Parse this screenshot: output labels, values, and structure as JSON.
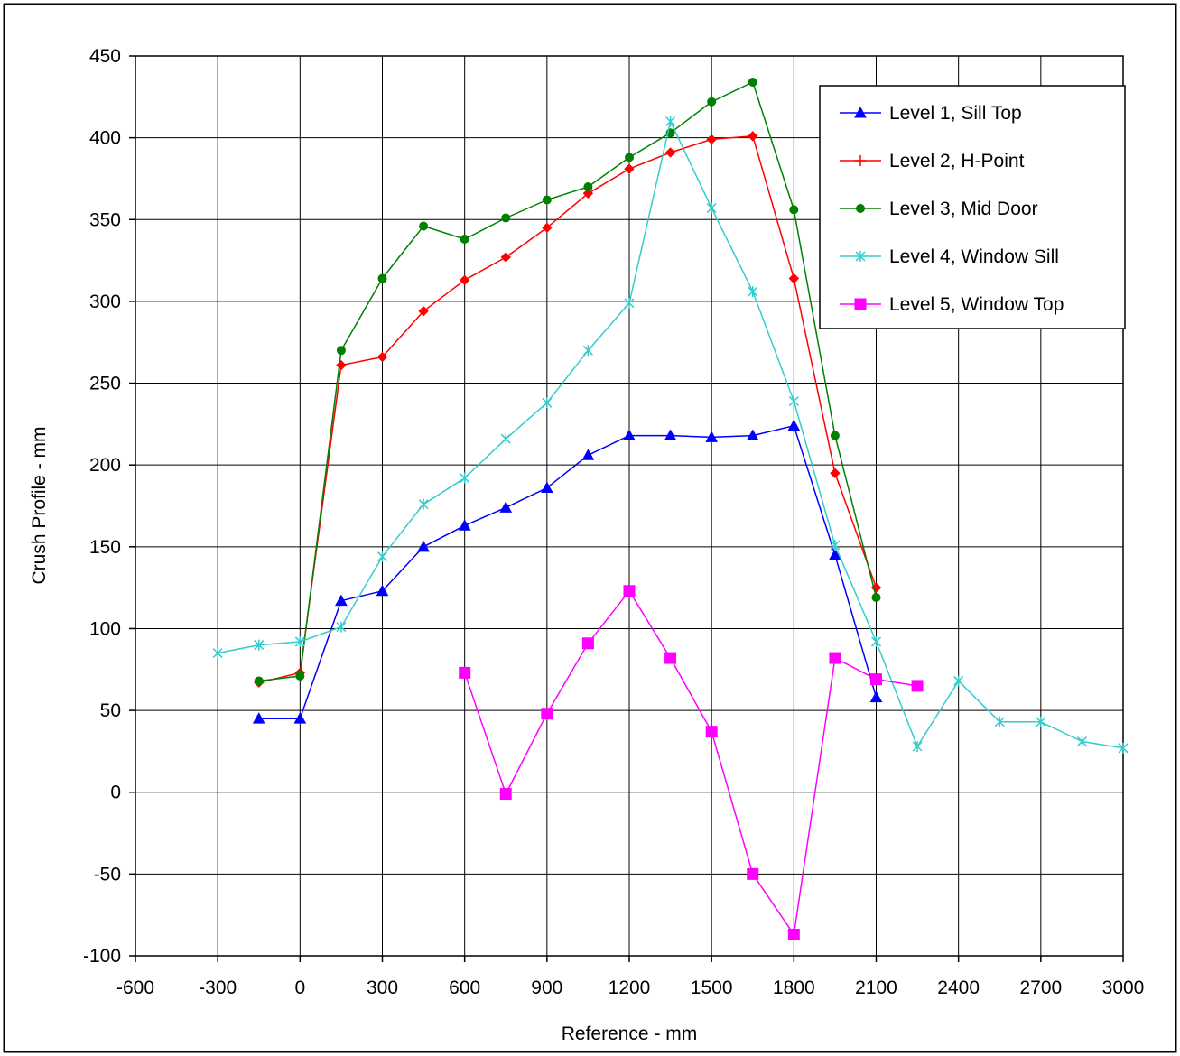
{
  "chart_data": {
    "type": "line",
    "title": "",
    "xlabel": "Reference - mm",
    "ylabel": "Crush Profile - mm",
    "xlim": [
      -600,
      3000
    ],
    "ylim": [
      -100,
      450
    ],
    "xticks": [
      -600,
      -300,
      0,
      300,
      600,
      900,
      1200,
      1500,
      1800,
      2100,
      2400,
      2700,
      3000
    ],
    "yticks": [
      -100,
      -50,
      0,
      50,
      100,
      150,
      200,
      250,
      300,
      350,
      400,
      450
    ],
    "grid": true,
    "legend_position": "top-right",
    "series": [
      {
        "name": "Level 1, Sill Top",
        "color": "#0000ff",
        "marker": "triangle",
        "points": [
          [
            -150,
            45
          ],
          [
            0,
            45
          ],
          [
            150,
            117
          ],
          [
            300,
            123
          ],
          [
            450,
            150
          ],
          [
            600,
            163
          ],
          [
            750,
            174
          ],
          [
            900,
            186
          ],
          [
            1050,
            206
          ],
          [
            1200,
            218
          ],
          [
            1350,
            218
          ],
          [
            1500,
            217
          ],
          [
            1650,
            218
          ],
          [
            1800,
            224
          ],
          [
            1950,
            145
          ],
          [
            2100,
            58
          ]
        ]
      },
      {
        "name": "Level 2, H-Point",
        "color": "#ff0000",
        "marker": "diamond",
        "points": [
          [
            -150,
            67
          ],
          [
            0,
            73
          ],
          [
            150,
            261
          ],
          [
            300,
            266
          ],
          [
            450,
            294
          ],
          [
            600,
            313
          ],
          [
            750,
            327
          ],
          [
            900,
            345
          ],
          [
            1050,
            366
          ],
          [
            1200,
            381
          ],
          [
            1350,
            391
          ],
          [
            1500,
            399
          ],
          [
            1650,
            401
          ],
          [
            1800,
            314
          ],
          [
            1950,
            195
          ],
          [
            2100,
            125
          ]
        ]
      },
      {
        "name": "Level 3, Mid Door",
        "color": "#008000",
        "marker": "circle",
        "points": [
          [
            -150,
            68
          ],
          [
            0,
            71
          ],
          [
            150,
            270
          ],
          [
            300,
            314
          ],
          [
            450,
            346
          ],
          [
            600,
            338
          ],
          [
            750,
            351
          ],
          [
            900,
            362
          ],
          [
            1050,
            370
          ],
          [
            1200,
            388
          ],
          [
            1350,
            403
          ],
          [
            1500,
            422
          ],
          [
            1650,
            434
          ],
          [
            1800,
            356
          ],
          [
            1950,
            218
          ],
          [
            2100,
            119
          ]
        ]
      },
      {
        "name": "Level 4, Window Sill",
        "color": "#33cccc",
        "marker": "asterisk",
        "points": [
          [
            -300,
            85
          ],
          [
            -150,
            90
          ],
          [
            0,
            92
          ],
          [
            150,
            101
          ],
          [
            300,
            144
          ],
          [
            450,
            176
          ],
          [
            600,
            192
          ],
          [
            750,
            216
          ],
          [
            900,
            238
          ],
          [
            1050,
            270
          ],
          [
            1200,
            299
          ],
          [
            1350,
            410
          ],
          [
            1500,
            357
          ],
          [
            1650,
            306
          ],
          [
            1800,
            239
          ],
          [
            1950,
            151
          ],
          [
            2100,
            92
          ],
          [
            2250,
            28
          ],
          [
            2400,
            68
          ],
          [
            2550,
            43
          ],
          [
            2700,
            43
          ],
          [
            2850,
            31
          ],
          [
            3000,
            27
          ]
        ]
      },
      {
        "name": "Level 5, Window Top",
        "color": "#ff00ff",
        "marker": "square",
        "points": [
          [
            600,
            73
          ],
          [
            750,
            -1
          ],
          [
            900,
            48
          ],
          [
            1050,
            91
          ],
          [
            1200,
            123
          ],
          [
            1350,
            82
          ],
          [
            1500,
            37
          ],
          [
            1650,
            -50
          ],
          [
            1800,
            -87
          ],
          [
            1950,
            82
          ],
          [
            2100,
            69
          ],
          [
            2250,
            65
          ]
        ]
      }
    ]
  }
}
